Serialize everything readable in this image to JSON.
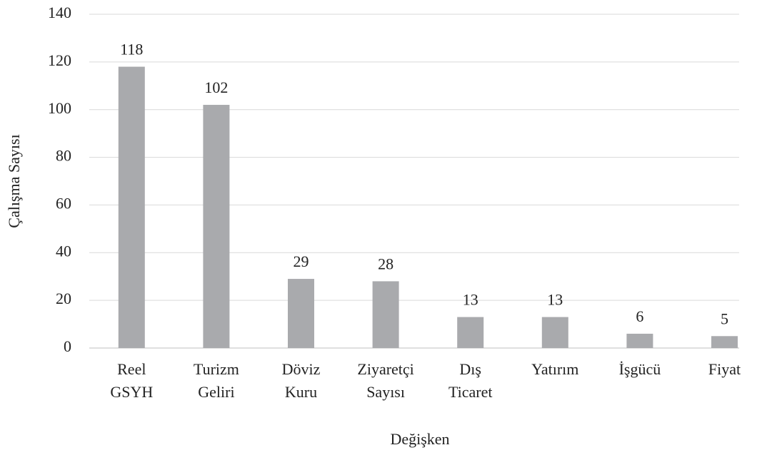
{
  "chart_data": {
    "type": "bar",
    "x_label": "Değişken",
    "y_label": "Çalışma Sayısı",
    "categories": [
      "Reel GSYH",
      "Turizm Geliri",
      "Döviz Kuru",
      "Ziyaretçi Sayısı",
      "Dış Ticaret",
      "Yatırım",
      "İşgücü",
      "Fiyat"
    ],
    "values": [
      118,
      102,
      29,
      28,
      13,
      13,
      6,
      5
    ],
    "color": "#a9aaad",
    "ylim": [
      0,
      140
    ],
    "yticks": [
      0,
      20,
      40,
      60,
      80,
      100,
      120,
      140
    ],
    "grid": true,
    "data_labels": true
  }
}
